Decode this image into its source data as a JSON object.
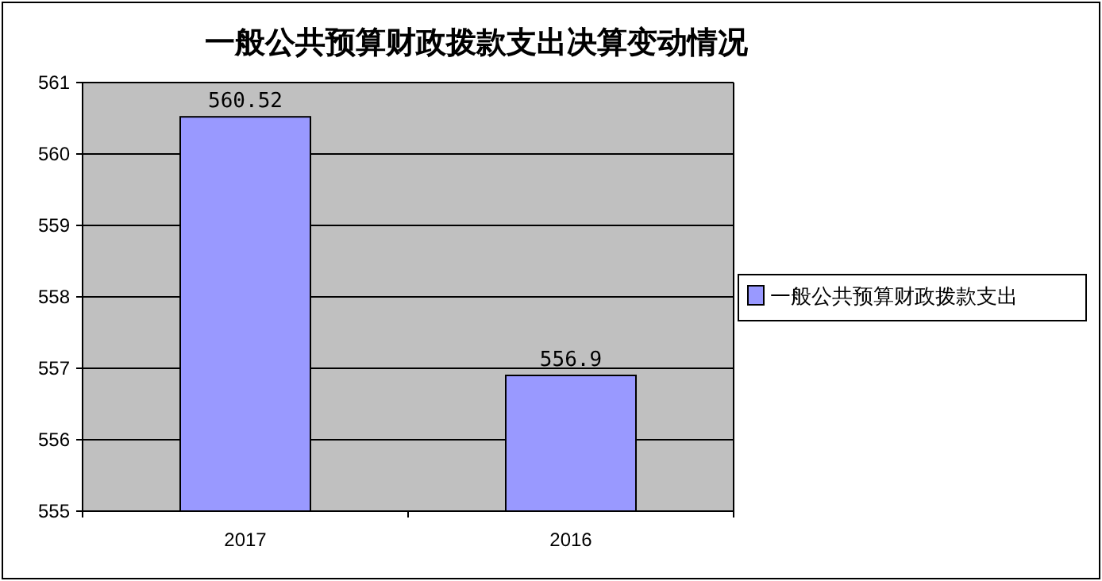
{
  "chart_data": {
    "type": "bar",
    "title": "一般公共预算财政拨款支出决算变动情况",
    "categories": [
      "2017",
      "2016"
    ],
    "series": [
      {
        "name": "一般公共预算财政拨款支出",
        "color": "#9999ff",
        "values": [
          560.52,
          556.9
        ]
      }
    ],
    "ylim": [
      555,
      561
    ],
    "yticks": [
      555,
      556,
      557,
      558,
      559,
      560,
      561
    ],
    "grid": "y",
    "legend": "right",
    "data_labels": true
  }
}
